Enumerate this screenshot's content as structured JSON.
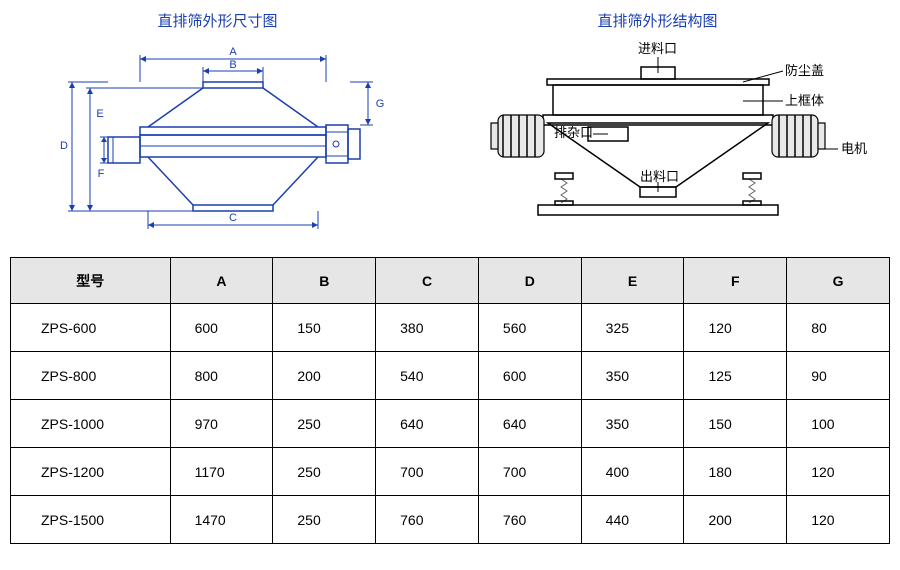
{
  "diagrams": {
    "left_title": "直排筛外形尺寸图",
    "right_title": "直排筛外形结构图",
    "title_color": "#1a3fb0",
    "line_color": "#1a3fb0",
    "dim_labels": {
      "A": "A",
      "B": "B",
      "C": "C",
      "D": "D",
      "E": "E",
      "F": "F",
      "G": "G"
    },
    "structure_labels": {
      "inlet": "进料口",
      "dustcover": "防尘盖",
      "upperframe": "上框体",
      "impurity": "排杂口",
      "motor": "电机",
      "outlet": "出料口"
    }
  },
  "table": {
    "header_bg": "#e6e6e6",
    "border_color": "#000000",
    "columns": [
      "型号",
      "A",
      "B",
      "C",
      "D",
      "E",
      "F",
      "G"
    ],
    "rows": [
      [
        "ZPS-600",
        "600",
        "150",
        "380",
        "560",
        "325",
        "120",
        "80"
      ],
      [
        "ZPS-800",
        "800",
        "200",
        "540",
        "600",
        "350",
        "125",
        "90"
      ],
      [
        "ZPS-1000",
        "970",
        "250",
        "640",
        "640",
        "350",
        "150",
        "100"
      ],
      [
        "ZPS-1200",
        "1170",
        "250",
        "700",
        "700",
        "400",
        "180",
        "120"
      ],
      [
        "ZPS-1500",
        "1470",
        "250",
        "760",
        "760",
        "440",
        "200",
        "120"
      ]
    ]
  }
}
